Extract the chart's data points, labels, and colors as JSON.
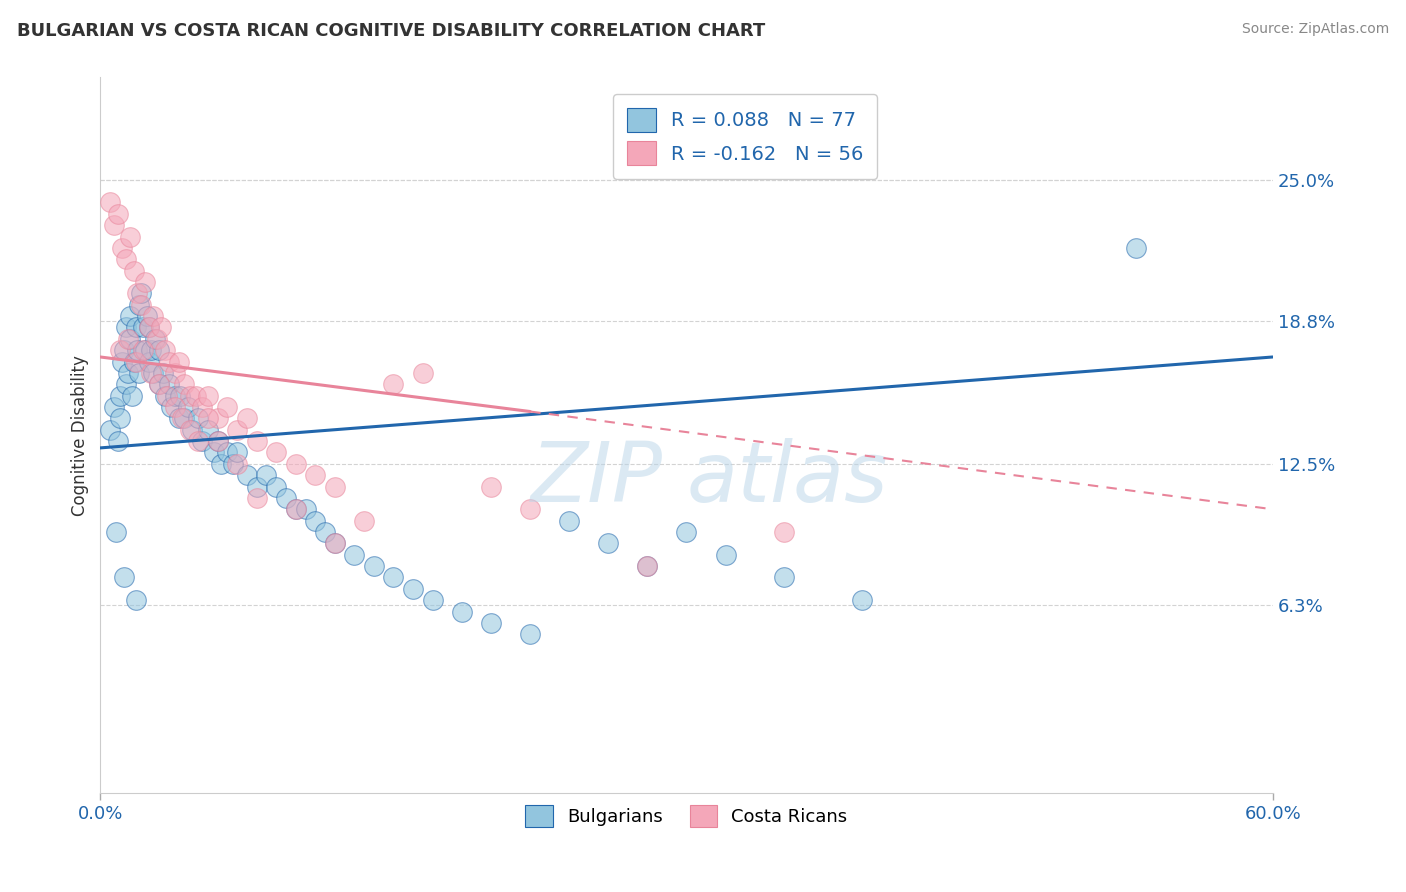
{
  "title": "BULGARIAN VS COSTA RICAN COGNITIVE DISABILITY CORRELATION CHART",
  "source": "Source: ZipAtlas.com",
  "ylabel": "Cognitive Disability",
  "right_yticks": [
    0.063,
    0.125,
    0.188,
    0.25
  ],
  "right_yticklabels": [
    "6.3%",
    "12.5%",
    "18.8%",
    "25.0%"
  ],
  "xlim": [
    0.0,
    0.6
  ],
  "ylim": [
    -0.02,
    0.295
  ],
  "legend_labels": [
    "Bulgarians",
    "Costa Ricans"
  ],
  "legend_r": [
    "R = 0.088",
    "R = -0.162"
  ],
  "legend_n": [
    "N = 77",
    "N = 56"
  ],
  "blue_color": "#92c5de",
  "pink_color": "#f4a7b9",
  "blue_line_color": "#2166ac",
  "pink_line_color": "#e8849a",
  "watermark": "ZIPatlas",
  "blue_trend_x0": 0.0,
  "blue_trend_y0": 0.132,
  "blue_trend_x1": 0.6,
  "blue_trend_y1": 0.172,
  "pink_trend_solid_x0": 0.0,
  "pink_trend_solid_y0": 0.172,
  "pink_trend_solid_x1": 0.22,
  "pink_trend_solid_y1": 0.148,
  "pink_trend_dash_x0": 0.22,
  "pink_trend_dash_y0": 0.148,
  "pink_trend_dash_x1": 0.6,
  "pink_trend_dash_y1": 0.105,
  "blue_dots_x": [
    0.005,
    0.007,
    0.009,
    0.01,
    0.01,
    0.011,
    0.012,
    0.013,
    0.013,
    0.014,
    0.015,
    0.015,
    0.016,
    0.017,
    0.018,
    0.019,
    0.02,
    0.02,
    0.021,
    0.022,
    0.023,
    0.024,
    0.025,
    0.025,
    0.026,
    0.027,
    0.028,
    0.03,
    0.03,
    0.032,
    0.033,
    0.035,
    0.036,
    0.038,
    0.04,
    0.041,
    0.043,
    0.045,
    0.047,
    0.05,
    0.052,
    0.055,
    0.058,
    0.06,
    0.062,
    0.065,
    0.068,
    0.07,
    0.075,
    0.08,
    0.085,
    0.09,
    0.095,
    0.1,
    0.105,
    0.11,
    0.115,
    0.12,
    0.13,
    0.14,
    0.15,
    0.16,
    0.17,
    0.185,
    0.2,
    0.22,
    0.24,
    0.26,
    0.28,
    0.3,
    0.32,
    0.35,
    0.39,
    0.53,
    0.008,
    0.012,
    0.018
  ],
  "blue_dots_y": [
    0.14,
    0.15,
    0.135,
    0.155,
    0.145,
    0.17,
    0.175,
    0.185,
    0.16,
    0.165,
    0.18,
    0.19,
    0.155,
    0.17,
    0.185,
    0.175,
    0.165,
    0.195,
    0.2,
    0.185,
    0.175,
    0.19,
    0.17,
    0.185,
    0.175,
    0.165,
    0.18,
    0.16,
    0.175,
    0.165,
    0.155,
    0.16,
    0.15,
    0.155,
    0.145,
    0.155,
    0.145,
    0.15,
    0.14,
    0.145,
    0.135,
    0.14,
    0.13,
    0.135,
    0.125,
    0.13,
    0.125,
    0.13,
    0.12,
    0.115,
    0.12,
    0.115,
    0.11,
    0.105,
    0.105,
    0.1,
    0.095,
    0.09,
    0.085,
    0.08,
    0.075,
    0.07,
    0.065,
    0.06,
    0.055,
    0.05,
    0.1,
    0.09,
    0.08,
    0.095,
    0.085,
    0.075,
    0.065,
    0.22,
    0.095,
    0.075,
    0.065
  ],
  "pink_dots_x": [
    0.005,
    0.007,
    0.009,
    0.011,
    0.013,
    0.015,
    0.017,
    0.019,
    0.021,
    0.023,
    0.025,
    0.027,
    0.029,
    0.031,
    0.033,
    0.035,
    0.038,
    0.04,
    0.043,
    0.046,
    0.049,
    0.052,
    0.055,
    0.06,
    0.065,
    0.07,
    0.075,
    0.08,
    0.09,
    0.1,
    0.11,
    0.12,
    0.135,
    0.15,
    0.165,
    0.01,
    0.014,
    0.018,
    0.022,
    0.026,
    0.03,
    0.034,
    0.038,
    0.042,
    0.046,
    0.05,
    0.055,
    0.06,
    0.07,
    0.08,
    0.1,
    0.12,
    0.2,
    0.22,
    0.28,
    0.35
  ],
  "pink_dots_y": [
    0.24,
    0.23,
    0.235,
    0.22,
    0.215,
    0.225,
    0.21,
    0.2,
    0.195,
    0.205,
    0.185,
    0.19,
    0.18,
    0.185,
    0.175,
    0.17,
    0.165,
    0.17,
    0.16,
    0.155,
    0.155,
    0.15,
    0.155,
    0.145,
    0.15,
    0.14,
    0.145,
    0.135,
    0.13,
    0.125,
    0.12,
    0.115,
    0.1,
    0.16,
    0.165,
    0.175,
    0.18,
    0.17,
    0.175,
    0.165,
    0.16,
    0.155,
    0.15,
    0.145,
    0.14,
    0.135,
    0.145,
    0.135,
    0.125,
    0.11,
    0.105,
    0.09,
    0.115,
    0.105,
    0.08,
    0.095
  ]
}
